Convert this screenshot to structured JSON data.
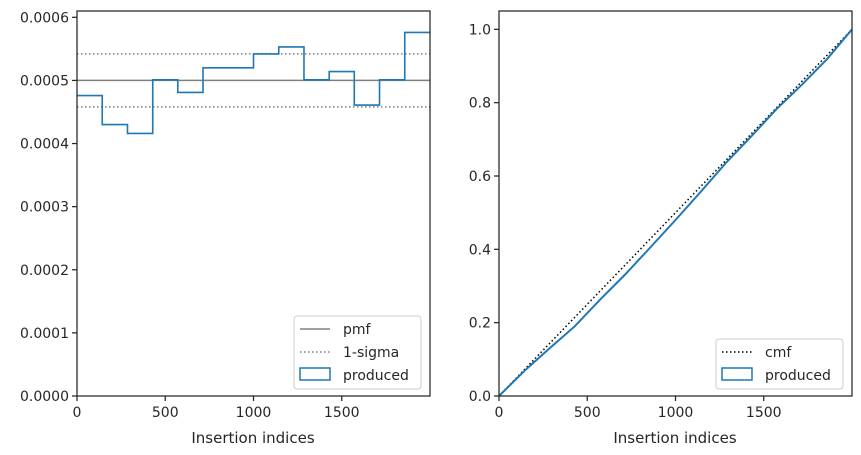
{
  "chart_data": [
    {
      "type": "step",
      "xlabel": "Insertion indices",
      "ylabel": "",
      "xlim": [
        0,
        2000
      ],
      "ylim": [
        0,
        0.00061
      ],
      "xticks": [
        0,
        500,
        1000,
        1500
      ],
      "xtick_labels": [
        "0",
        "500",
        "1000",
        "1500"
      ],
      "yticks": [
        0,
        0.0001,
        0.0002,
        0.0003,
        0.0004,
        0.0005,
        0.0006
      ],
      "ytick_labels": [
        "0.0000",
        "0.0001",
        "0.0002",
        "0.0003",
        "0.0004",
        "0.0005",
        "0.0006"
      ],
      "grid": false,
      "legend_position": "bottom-right",
      "pmf": 0.0005,
      "sigma_upper": 0.000542,
      "sigma_lower": 0.000458,
      "bin_edges": [
        0,
        143,
        286,
        429,
        571,
        714,
        857,
        1000,
        1143,
        1286,
        1429,
        1571,
        1714,
        1857,
        2000
      ],
      "produced": [
        0.000476,
        0.00043,
        0.000416,
        0.000501,
        0.000481,
        0.00052,
        0.00052,
        0.000542,
        0.000553,
        0.000501,
        0.000514,
        0.000461,
        0.000501,
        0.000576
      ],
      "legend": [
        "pmf",
        "1-sigma",
        "produced"
      ],
      "colors": {
        "produced": "#1f77b4",
        "pmf": "#808080",
        "sigma": "#808080"
      }
    },
    {
      "type": "line",
      "xlabel": "Insertion indices",
      "ylabel": "",
      "xlim": [
        0,
        2000
      ],
      "ylim": [
        0,
        1.05
      ],
      "xticks": [
        0,
        500,
        1000,
        1500
      ],
      "xtick_labels": [
        "0",
        "500",
        "1000",
        "1500"
      ],
      "yticks": [
        0,
        0.2,
        0.4,
        0.6,
        0.8,
        1.0
      ],
      "ytick_labels": [
        "0.0",
        "0.2",
        "0.4",
        "0.6",
        "0.8",
        "1.0"
      ],
      "grid": false,
      "legend_position": "bottom-right",
      "cmf": {
        "x": [
          0,
          2000
        ],
        "y": [
          0,
          1.0
        ]
      },
      "produced": {
        "x": [
          0,
          143,
          286,
          429,
          571,
          714,
          857,
          1000,
          1143,
          1286,
          1429,
          1571,
          1714,
          1857,
          2000
        ],
        "y": [
          0,
          0.068,
          0.13,
          0.19,
          0.262,
          0.331,
          0.405,
          0.48,
          0.557,
          0.636,
          0.708,
          0.782,
          0.848,
          0.918,
          1.0
        ]
      },
      "legend": [
        "cmf",
        "produced"
      ],
      "colors": {
        "produced": "#1f77b4",
        "cmf": "#000000"
      }
    }
  ]
}
